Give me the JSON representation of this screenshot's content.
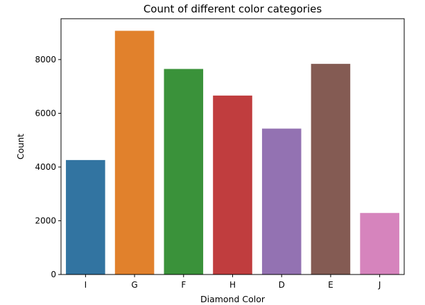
{
  "chart_data": {
    "type": "bar",
    "title": "Count of different color categories",
    "xlabel": "Diamond Color",
    "ylabel": "Count",
    "categories": [
      "I",
      "G",
      "F",
      "H",
      "D",
      "E",
      "J"
    ],
    "values": [
      4260,
      9070,
      7650,
      6660,
      5430,
      7840,
      2290
    ],
    "colors": [
      "#3274a1",
      "#e1812c",
      "#3a923a",
      "#c03d3e",
      "#9372b2",
      "#845b53",
      "#d684bd"
    ],
    "ylim": [
      0,
      9520
    ],
    "yticks": [
      0,
      2000,
      4000,
      6000,
      8000
    ],
    "grid": false,
    "legend": "none"
  }
}
